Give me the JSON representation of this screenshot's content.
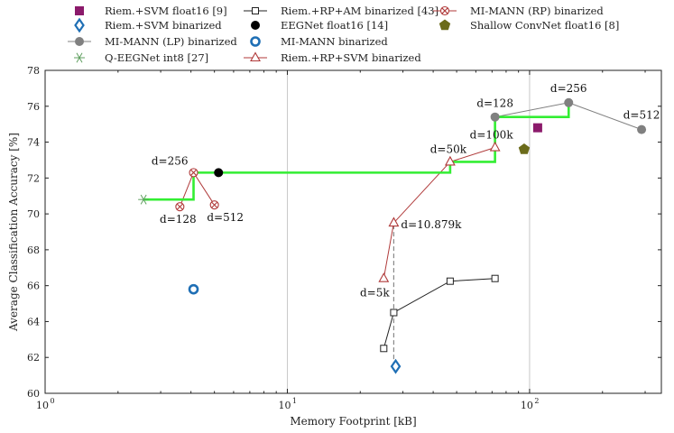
{
  "chart_data": {
    "type": "scatter",
    "xlabel": "Memory Footprint [kB]",
    "ylabel": "Average Classification Accuracy [%]",
    "xscale": "log",
    "xlim": [
      1,
      350
    ],
    "ylim": [
      60,
      78
    ],
    "xticks": [
      {
        "value": 1,
        "label": "10",
        "exp": "0"
      },
      {
        "value": 10,
        "label": "10",
        "exp": "1"
      },
      {
        "value": 100,
        "label": "10",
        "exp": "2"
      }
    ],
    "yticks": [
      60,
      62,
      64,
      66,
      68,
      70,
      72,
      74,
      76,
      78
    ],
    "grid": "major",
    "legend_position": "top",
    "series": [
      {
        "name": "Riem.+SVM float16 [9]",
        "marker": "square-filled",
        "color": "#8b1a6b",
        "line": false,
        "points": [
          {
            "x": 108,
            "y": 74.8
          }
        ]
      },
      {
        "name": "Riem.+SVM binarized",
        "marker": "diamond-open",
        "color": "#1f6fb5",
        "line": false,
        "points": [
          {
            "x": 28,
            "y": 61.5
          }
        ]
      },
      {
        "name": "MI-MANN (LP) binarized",
        "marker": "circle-filled",
        "color": "#808080",
        "line": true,
        "points": [
          {
            "x": 72,
            "y": 75.4
          },
          {
            "x": 145,
            "y": 76.2
          },
          {
            "x": 290,
            "y": 74.7
          }
        ]
      },
      {
        "name": "Q-EEGNet int8 [27]",
        "marker": "star",
        "color": "#60a060",
        "line": false,
        "points": [
          {
            "x": 2.55,
            "y": 70.8
          }
        ]
      },
      {
        "name": "Riem.+RP+AM binarized [43]",
        "marker": "square-open",
        "color": "#222222",
        "line": true,
        "points": [
          {
            "x": 25,
            "y": 62.5
          },
          {
            "x": 27.5,
            "y": 64.5
          },
          {
            "x": 47,
            "y": 66.25
          },
          {
            "x": 72,
            "y": 66.4
          }
        ]
      },
      {
        "name": "EEGNet float16 [14]",
        "marker": "circle-filled",
        "color": "#000000",
        "line": false,
        "points": [
          {
            "x": 5.2,
            "y": 72.3
          }
        ]
      },
      {
        "name": "MI-MANN binarized",
        "marker": "circle-open",
        "color": "#1f6fb5",
        "line": false,
        "points": [
          {
            "x": 4.1,
            "y": 65.8
          }
        ]
      },
      {
        "name": "Riem.+RP+SVM binarized",
        "marker": "triangle-open",
        "color": "#b03a3a",
        "line": true,
        "points": [
          {
            "x": 25,
            "y": 66.4
          },
          {
            "x": 27.5,
            "y": 69.5
          },
          {
            "x": 47,
            "y": 72.9
          },
          {
            "x": 72,
            "y": 73.7
          }
        ]
      },
      {
        "name": "MI-MANN (RP) binarized",
        "marker": "circle-x",
        "color": "#b03a3a",
        "line": true,
        "points": [
          {
            "x": 3.6,
            "y": 70.4
          },
          {
            "x": 4.1,
            "y": 72.3
          },
          {
            "x": 5.0,
            "y": 70.5
          }
        ]
      },
      {
        "name": "Shallow ConvNet float16 [8]",
        "marker": "pentagon-filled",
        "color": "#6b6b1a",
        "line": false,
        "points": [
          {
            "x": 95,
            "y": 73.6
          }
        ]
      }
    ],
    "pareto_front": {
      "color": "#33ee33",
      "points": [
        {
          "x": 2.55,
          "y": 70.8
        },
        {
          "x": 4.1,
          "y": 70.8
        },
        {
          "x": 4.1,
          "y": 72.3
        },
        {
          "x": 47,
          "y": 72.3
        },
        {
          "x": 47,
          "y": 72.9
        },
        {
          "x": 72,
          "y": 72.9
        },
        {
          "x": 72,
          "y": 75.4
        },
        {
          "x": 145,
          "y": 75.4
        },
        {
          "x": 145,
          "y": 76.2
        }
      ]
    },
    "reference_line": {
      "x": 27.5,
      "y_from": 61.5,
      "y_to": 69.5,
      "style": "dashed",
      "color": "#888888"
    },
    "annotations": [
      {
        "text": "d=256",
        "x": 4.1,
        "y": 72.3,
        "anchor": "end",
        "dx": -6,
        "dy": -9
      },
      {
        "text": "d=128",
        "x": 3.6,
        "y": 70.4,
        "anchor": "middle",
        "dx": -2,
        "dy": 18
      },
      {
        "text": "d=512",
        "x": 5.0,
        "y": 70.5,
        "anchor": "middle",
        "dx": 12,
        "dy": 18
      },
      {
        "text": "d=50k",
        "x": 47,
        "y": 72.9,
        "anchor": "middle",
        "dx": -2,
        "dy": -10
      },
      {
        "text": "d=100k",
        "x": 72,
        "y": 73.7,
        "anchor": "middle",
        "dx": -4,
        "dy": -10
      },
      {
        "text": "d=10.879k",
        "x": 27.5,
        "y": 69.5,
        "anchor": "start",
        "dx": 8,
        "dy": 6
      },
      {
        "text": "d=5k",
        "x": 25,
        "y": 66.4,
        "anchor": "middle",
        "dx": -10,
        "dy": 20
      },
      {
        "text": "d=128",
        "x": 72,
        "y": 75.4,
        "anchor": "middle",
        "dx": 0,
        "dy": -11
      },
      {
        "text": "d=256",
        "x": 145,
        "y": 76.2,
        "anchor": "middle",
        "dx": 0,
        "dy": -12
      },
      {
        "text": "d=512",
        "x": 290,
        "y": 74.7,
        "anchor": "middle",
        "dx": 0,
        "dy": -12
      }
    ]
  }
}
